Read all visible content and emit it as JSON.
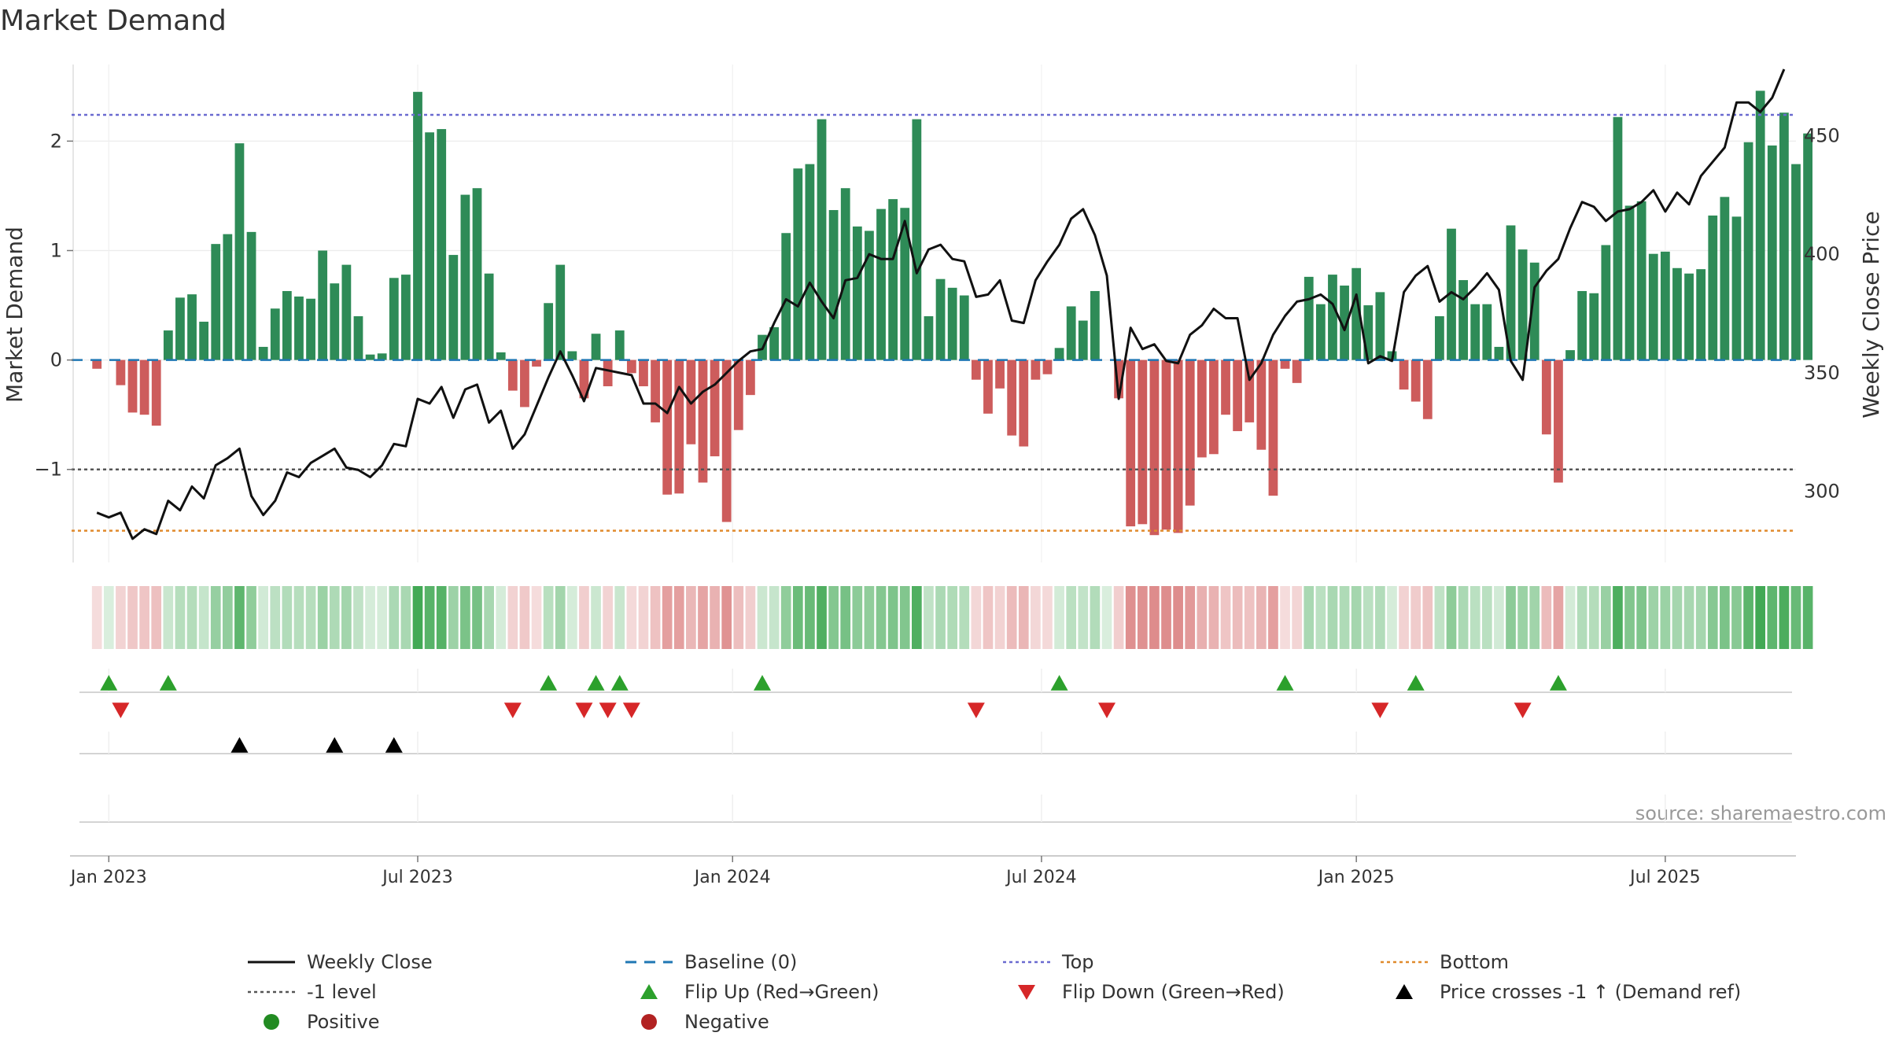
{
  "chart_data": {
    "type": "bar",
    "title": "Market Demand",
    "ylabel_left": "Market Demand",
    "ylabel_right": "Weekly Close Price",
    "source_note": "source: sharemaestro.com",
    "ylim_left": [
      -1.85,
      2.7
    ],
    "ylim_right": [
      270,
      480
    ],
    "yticks_left": [
      {
        "v": 2,
        "label": "2"
      },
      {
        "v": 1,
        "label": "1"
      },
      {
        "v": 0,
        "label": "0"
      },
      {
        "v": -1,
        "label": "−1"
      }
    ],
    "yticks_right": [
      {
        "v": 450,
        "label": "450"
      },
      {
        "v": 400,
        "label": "400"
      },
      {
        "v": 350,
        "label": "350"
      },
      {
        "v": 300,
        "label": "300"
      }
    ],
    "x_range_weeks": [
      -2,
      143
    ],
    "xticks": [
      {
        "week": 1,
        "label": "Jan 2023"
      },
      {
        "week": 27,
        "label": "Jul 2023"
      },
      {
        "week": 53.5,
        "label": "Jan 2024"
      },
      {
        "week": 79.5,
        "label": "Jul 2024"
      },
      {
        "week": 106,
        "label": "Jan 2025"
      },
      {
        "week": 132,
        "label": "Jul 2025"
      }
    ],
    "reference_levels": {
      "top": 2.24,
      "minus_one": -1,
      "bottom": -1.56,
      "baseline": 0
    },
    "demand": [
      -0.08,
      0,
      -0.23,
      -0.48,
      -0.5,
      -0.6,
      0.27,
      0.57,
      0.6,
      0.35,
      1.06,
      1.15,
      1.98,
      1.17,
      0.12,
      0.47,
      0.63,
      0.58,
      0.56,
      1.0,
      0.7,
      0.87,
      0.4,
      0.05,
      0.06,
      0.75,
      0.78,
      2.45,
      2.08,
      2.11,
      0.96,
      1.51,
      1.57,
      0.79,
      0.07,
      -0.28,
      -0.43,
      -0.06,
      0.52,
      0.87,
      0.08,
      -0.35,
      0.24,
      -0.24,
      0.27,
      -0.12,
      -0.24,
      -0.57,
      -1.23,
      -1.22,
      -0.77,
      -1.12,
      -0.88,
      -1.48,
      -0.64,
      -0.32,
      0.23,
      0.3,
      1.16,
      1.75,
      1.79,
      2.2,
      1.37,
      1.57,
      1.22,
      1.18,
      1.38,
      1.47,
      1.39,
      2.2,
      0.4,
      0.74,
      0.66,
      0.59,
      -0.18,
      -0.49,
      -0.26,
      -0.69,
      -0.79,
      -0.18,
      -0.13,
      0.11,
      0.49,
      0.36,
      0.63,
      0,
      -0.35,
      -1.52,
      -1.5,
      -1.6,
      -1.55,
      -1.58,
      -1.33,
      -0.89,
      -0.86,
      -0.5,
      -0.65,
      -0.57,
      -0.82,
      -1.24,
      -0.08,
      -0.21,
      0.76,
      0.51,
      0.78,
      0.68,
      0.84,
      0.5,
      0.62,
      0.08,
      -0.27,
      -0.38,
      -0.54,
      0.4,
      1.2,
      0.73,
      0.51,
      0.51,
      0.12,
      1.23,
      1.01,
      0.89,
      -0.68,
      -1.12,
      0.09,
      0.63,
      0.61,
      1.05,
      2.22,
      1.41,
      1.45,
      0.97,
      0.99,
      0.84,
      0.79,
      0.83,
      1.32,
      1.49,
      1.31,
      1.99,
      2.46,
      1.96,
      2.26,
      1.79,
      2.07
    ],
    "price": [
      291,
      289,
      291,
      280,
      284,
      282,
      296,
      292,
      302,
      297,
      311,
      314,
      318,
      298,
      290,
      296,
      308,
      306,
      312,
      315,
      318,
      310,
      309,
      306,
      311,
      320,
      319,
      339,
      337,
      344,
      331,
      343,
      345,
      329,
      334,
      318,
      324,
      336,
      348,
      359,
      349,
      338,
      352,
      351,
      350,
      349,
      337,
      337,
      333,
      344,
      337,
      342,
      345,
      350,
      355,
      359,
      360,
      371,
      381,
      378,
      388,
      380,
      373,
      389,
      390,
      400,
      398,
      398,
      414,
      392,
      402,
      404,
      398,
      397,
      382,
      383,
      389,
      372,
      371,
      389,
      397,
      404,
      415,
      419,
      408,
      391,
      339,
      369,
      360,
      362,
      355,
      354,
      366,
      370,
      377,
      373,
      373,
      347,
      354,
      366,
      374,
      380,
      381,
      383,
      379,
      368,
      383,
      354,
      357,
      355,
      384,
      391,
      395,
      380,
      384,
      381,
      386,
      392,
      385,
      355,
      347,
      386,
      393,
      398,
      411,
      422,
      420,
      414,
      418,
      419,
      422,
      427,
      418,
      426,
      421,
      433,
      439,
      445,
      464,
      464,
      460,
      466,
      478
    ],
    "heat_values": [
      -0.08,
      0,
      -0.23,
      -0.48,
      -0.5,
      -0.6,
      0.27,
      0.57,
      0.6,
      0.35,
      1.06,
      1.15,
      1.98,
      1.17,
      0.12,
      0.47,
      0.63,
      0.58,
      0.56,
      1.0,
      0.7,
      0.87,
      0.4,
      0.05,
      0.06,
      0.75,
      0.78,
      2.45,
      2.08,
      2.11,
      0.96,
      1.51,
      1.57,
      0.79,
      0.07,
      -0.28,
      -0.43,
      -0.06,
      0.52,
      0.87,
      0.08,
      -0.35,
      0.24,
      -0.24,
      0.27,
      -0.12,
      -0.24,
      -0.57,
      -1.23,
      -1.22,
      -0.77,
      -1.12,
      -0.88,
      -1.48,
      -0.64,
      -0.32,
      0.23,
      0.3,
      1.16,
      1.75,
      1.79,
      2.2,
      1.37,
      1.57,
      1.22,
      1.18,
      1.38,
      1.47,
      1.39,
      2.2,
      0.4,
      0.74,
      0.66,
      0.59,
      -0.18,
      -0.49,
      -0.26,
      -0.69,
      -0.79,
      -0.18,
      -0.13,
      0.11,
      0.49,
      0.36,
      0.63,
      0,
      -0.35,
      -1.52,
      -1.5,
      -1.6,
      -1.55,
      -1.58,
      -1.33,
      -0.89,
      -0.86,
      -0.5,
      -0.65,
      -0.57,
      -0.82,
      -1.24,
      -0.08,
      -0.21,
      0.76,
      0.51,
      0.78,
      0.68,
      0.84,
      0.5,
      0.62,
      0.08,
      -0.27,
      -0.38,
      -0.54,
      0.4,
      1.2,
      0.73,
      0.51,
      0.51,
      0.12,
      1.23,
      1.01,
      0.89,
      -0.68,
      -1.12,
      0.09,
      0.63,
      0.61,
      1.05,
      2.22,
      1.41,
      1.45,
      0.97,
      0.99,
      0.84,
      0.79,
      0.83,
      1.32,
      1.49,
      1.31,
      1.99,
      2.46,
      1.96,
      2.26,
      1.79,
      2.07
    ],
    "flip_up_weeks": [
      1,
      6,
      38,
      42,
      44,
      56,
      81,
      100,
      111,
      123
    ],
    "flip_down_weeks": [
      2,
      35,
      41,
      43,
      45,
      74,
      85,
      108,
      120
    ],
    "price_cross_weeks": [
      12,
      20,
      25
    ],
    "colors": {
      "bar_positive": "#2e8b57",
      "bar_negative": "#cd5c5c",
      "price_line": "#111111",
      "baseline": "#1f77b4",
      "top": "#6a6ad0",
      "minus_one": "#555555",
      "bottom": "#e08a2c",
      "flip_up": "#2ca02c",
      "flip_down": "#d62728",
      "price_cross": "#000000",
      "positive_dot": "#228b22",
      "negative_dot": "#b22222"
    }
  },
  "legend": {
    "items": [
      {
        "label": "Weekly Close",
        "symbol": "line-solid",
        "color": "#111111"
      },
      {
        "label": "Baseline (0)",
        "symbol": "line-dashed",
        "color": "#1f77b4"
      },
      {
        "label": "Top",
        "symbol": "line-dotted",
        "color": "#6a6ad0"
      },
      {
        "label": "Bottom",
        "symbol": "line-dotted",
        "color": "#e08a2c"
      },
      {
        "label": "-1 level",
        "symbol": "line-dotted",
        "color": "#555555"
      },
      {
        "label": "Flip Up (Red→Green)",
        "symbol": "triangle-up",
        "color": "#2ca02c"
      },
      {
        "label": "Flip Down (Green→Red)",
        "symbol": "triangle-down",
        "color": "#d62728"
      },
      {
        "label": "Price crosses -1 ↑ (Demand ref)",
        "symbol": "triangle-up",
        "color": "#000000"
      },
      {
        "label": "Positive",
        "symbol": "dot",
        "color": "#228b22"
      },
      {
        "label": "Negative",
        "symbol": "dot",
        "color": "#b22222"
      }
    ]
  }
}
